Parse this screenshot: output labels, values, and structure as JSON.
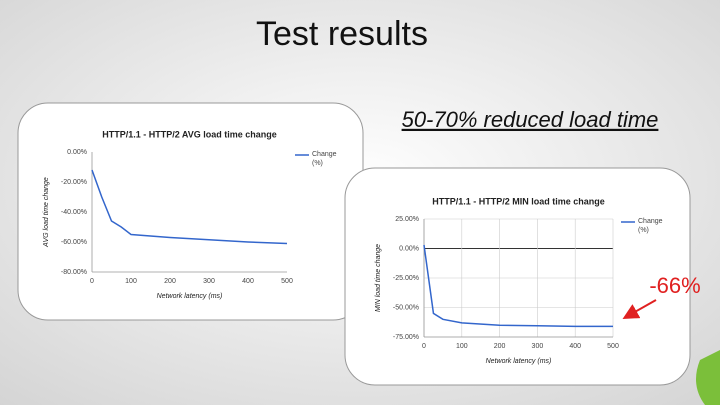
{
  "slide": {
    "title": "Test results",
    "callout": "50-70% reduced load time",
    "annotation": "-66%"
  },
  "chart_data": [
    {
      "type": "line",
      "title": "HTTP/1.1 - HTTP/2 AVG load time change",
      "x_label": "Network latency (ms)",
      "y_label": "AVG load time change",
      "x": [
        0,
        25,
        50,
        75,
        100,
        200,
        300,
        400,
        500
      ],
      "series": [
        {
          "name": "Change (%)",
          "color": "#3366cc",
          "values": [
            -12,
            -30,
            -46,
            -50,
            -55,
            -57,
            -58.5,
            -60,
            -61
          ]
        }
      ],
      "xlim": [
        0,
        500
      ],
      "xticks": [
        0,
        100,
        200,
        300,
        400,
        500
      ],
      "ylim": [
        -80,
        0
      ],
      "yticks": [
        {
          "value": -80,
          "label": "-80.00%"
        },
        {
          "value": -60,
          "label": "-60.00%"
        },
        {
          "value": -40,
          "label": "-40.00%"
        },
        {
          "value": -20,
          "label": "-20.00%"
        },
        {
          "value": 0,
          "label": "0.00%"
        }
      ],
      "grid": false,
      "legend": "right"
    },
    {
      "type": "line",
      "title": "HTTP/1.1 - HTTP/2 MIN load time change",
      "x_label": "Network latency (ms)",
      "y_label": "MIN load time change",
      "x": [
        0,
        25,
        50,
        100,
        200,
        300,
        400,
        500
      ],
      "series": [
        {
          "name": "Change (%)",
          "color": "#3366cc",
          "values": [
            3,
            -55,
            -60,
            -63,
            -65,
            -65.5,
            -66,
            -66
          ]
        }
      ],
      "xlim": [
        0,
        500
      ],
      "xticks": [
        0,
        100,
        200,
        300,
        400,
        500
      ],
      "ylim": [
        -75,
        25
      ],
      "yticks": [
        {
          "value": -75,
          "label": "-75.00%"
        },
        {
          "value": -50,
          "label": "-50.00%"
        },
        {
          "value": -25,
          "label": "-25.00%"
        },
        {
          "value": 0,
          "label": "0.00%"
        },
        {
          "value": 25,
          "label": "25.00%"
        }
      ],
      "grid": true,
      "legend": "right"
    }
  ]
}
